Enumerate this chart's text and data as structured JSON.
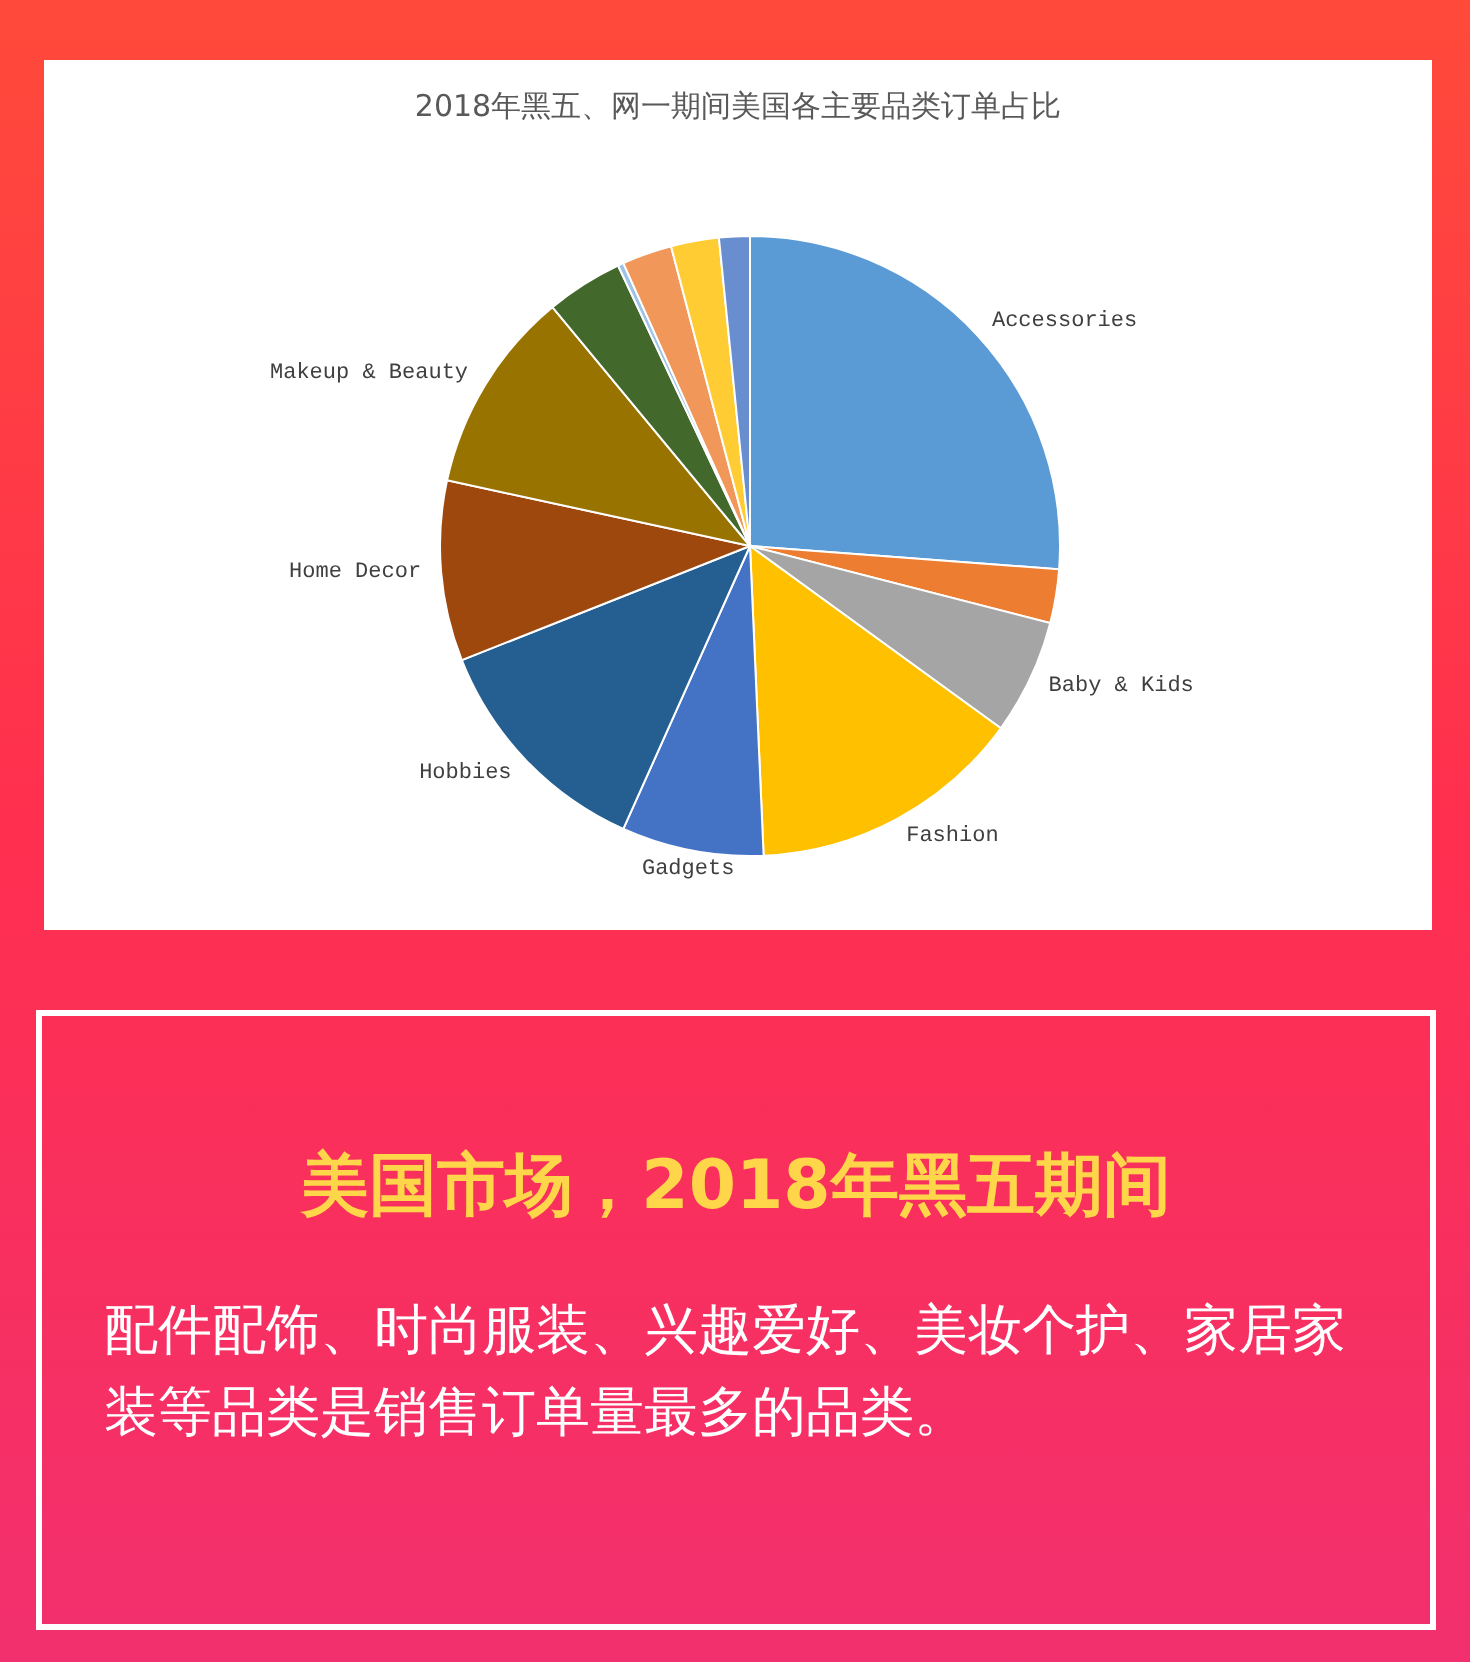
{
  "chart_data": {
    "type": "pie",
    "title": "2018年黑五、网一期间美国各主要品类订单占比",
    "categories": [
      "Accessories",
      null,
      "Baby & Kids",
      "Fashion",
      "Gadgets",
      "Hobbies",
      "Home Decor",
      "Makeup & Beauty",
      null,
      null,
      null,
      null,
      null
    ],
    "values": [
      26.2,
      2.8,
      6,
      14.3,
      7.4,
      12.3,
      9.4,
      10.6,
      4,
      0.3,
      2.6,
      2.5,
      1.6
    ],
    "colors": [
      "#5b9bd5",
      "#ed7d31",
      "#a5a5a5",
      "#ffc000",
      "#4472c4",
      "#255e91",
      "#9e480e",
      "#997300",
      "#43682b",
      "#9dc3e6",
      "#f1975a",
      "#ffcd33",
      "#698ed0"
    ],
    "annotations": [
      "美国市场，2018年黑五期间",
      "配件配饰、时尚服装、兴趣爱好、美妆个护、家居家装等品类是销售订单量最多的品类。"
    ]
  }
}
